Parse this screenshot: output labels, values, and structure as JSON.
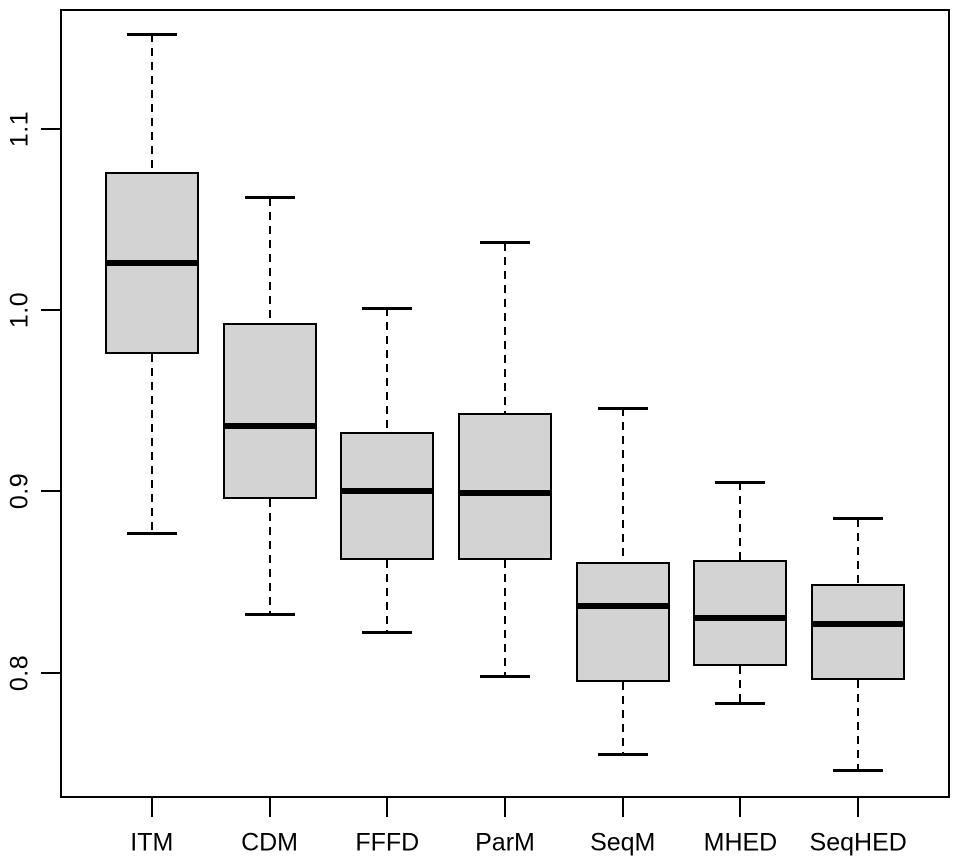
{
  "chart_data": {
    "type": "boxplot",
    "title": "",
    "xlabel": "",
    "ylabel": "",
    "categories": [
      "ITM",
      "CDM",
      "FFFD",
      "ParM",
      "SeqM",
      "MHED",
      "SeqHED"
    ],
    "boxes": [
      {
        "label": "ITM",
        "whisker_low": 0.877,
        "q1": 0.976,
        "median": 1.026,
        "q3": 1.076,
        "whisker_high": 1.152
      },
      {
        "label": "CDM",
        "whisker_low": 0.832,
        "q1": 0.896,
        "median": 0.936,
        "q3": 0.993,
        "whisker_high": 1.062
      },
      {
        "label": "FFFD",
        "whisker_low": 0.822,
        "q1": 0.862,
        "median": 0.9,
        "q3": 0.933,
        "whisker_high": 1.001
      },
      {
        "label": "ParM",
        "whisker_low": 0.798,
        "q1": 0.862,
        "median": 0.899,
        "q3": 0.943,
        "whisker_high": 1.037
      },
      {
        "label": "SeqM",
        "whisker_low": 0.755,
        "q1": 0.795,
        "median": 0.837,
        "q3": 0.861,
        "whisker_high": 0.946
      },
      {
        "label": "MHED",
        "whisker_low": 0.783,
        "q1": 0.804,
        "median": 0.83,
        "q3": 0.862,
        "whisker_high": 0.905
      },
      {
        "label": "SeqHED",
        "whisker_low": 0.746,
        "q1": 0.796,
        "median": 0.827,
        "q3": 0.849,
        "whisker_high": 0.885
      }
    ],
    "yticks": [
      "0.8",
      "0.9",
      "1.0",
      "1.1"
    ],
    "ytick_values": [
      0.8,
      0.9,
      1.0,
      1.1
    ],
    "ylim": [
      0.731,
      1.166
    ],
    "legend": null,
    "grid": false,
    "colors": {
      "box_fill": "#d3d3d3",
      "line": "#000000",
      "background": "#ffffff"
    }
  }
}
